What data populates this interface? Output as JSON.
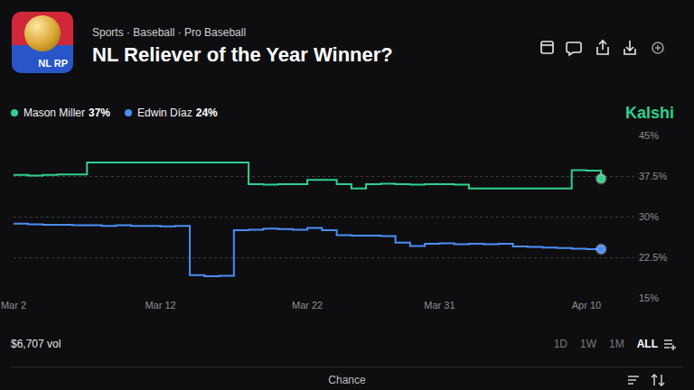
{
  "header": {
    "icon_text": "NL RP",
    "breadcrumb": "Sports · Baseball · Pro Baseball",
    "title": "NL Reliever of the Year Winner?",
    "chances": [
      "37%",
      "24%"
    ],
    "brand": "Kalshi"
  },
  "chart_data": {
    "type": "line",
    "line_style": "step",
    "grid": true,
    "categories": [
      "Mar 2",
      null,
      null,
      null,
      null,
      null,
      null,
      null,
      null,
      null,
      "Mar 12",
      null,
      null,
      null,
      null,
      null,
      null,
      null,
      null,
      null,
      "Mar 22",
      null,
      null,
      null,
      null,
      null,
      null,
      null,
      null,
      "Mar 31",
      null,
      null,
      null,
      null,
      null,
      null,
      null,
      null,
      null,
      "Apr 10",
      null
    ],
    "ylim": [
      15,
      45
    ],
    "yticks": [
      {
        "value": 15,
        "label": "15%"
      },
      {
        "value": 22.5,
        "label": "22.5%"
      },
      {
        "value": 30,
        "label": "30%"
      },
      {
        "value": 37.5,
        "label": "37.5%"
      },
      {
        "value": 45,
        "label": "45%"
      }
    ],
    "series": [
      {
        "name": "Mason Miller",
        "color": "#2fd08e",
        "values": [
          37.7,
          37.6,
          37.7,
          37.8,
          37.8,
          40.0,
          40.0,
          40.0,
          40.0,
          40.0,
          40.0,
          40.0,
          40.0,
          40.0,
          40.0,
          40.0,
          36.0,
          35.9,
          36.0,
          36.0,
          36.8,
          36.8,
          36.0,
          35.2,
          36.0,
          36.1,
          36.0,
          35.9,
          36.0,
          36.0,
          35.9,
          35.2,
          35.2,
          35.2,
          35.2,
          35.2,
          35.2,
          35.2,
          38.6,
          38.5,
          37.0
        ]
      },
      {
        "name": "Edwin Díaz",
        "color": "#4a8ef5",
        "values": [
          28.7,
          28.6,
          28.5,
          28.5,
          28.4,
          28.4,
          28.3,
          28.4,
          28.3,
          28.3,
          28.2,
          28.3,
          19.2,
          19.0,
          19.1,
          27.5,
          27.6,
          27.8,
          27.7,
          27.6,
          27.9,
          27.5,
          26.6,
          26.5,
          26.5,
          26.4,
          25.2,
          24.6,
          25.0,
          25.1,
          24.9,
          25.0,
          24.9,
          25.0,
          24.5,
          24.4,
          24.3,
          24.2,
          24.1,
          24.0,
          24.0
        ]
      }
    ]
  },
  "footer": {
    "volume": "$6,707 vol",
    "ranges": [
      "1D",
      "1W",
      "1M",
      "ALL"
    ],
    "active_range": "ALL",
    "tab": "Chance"
  }
}
